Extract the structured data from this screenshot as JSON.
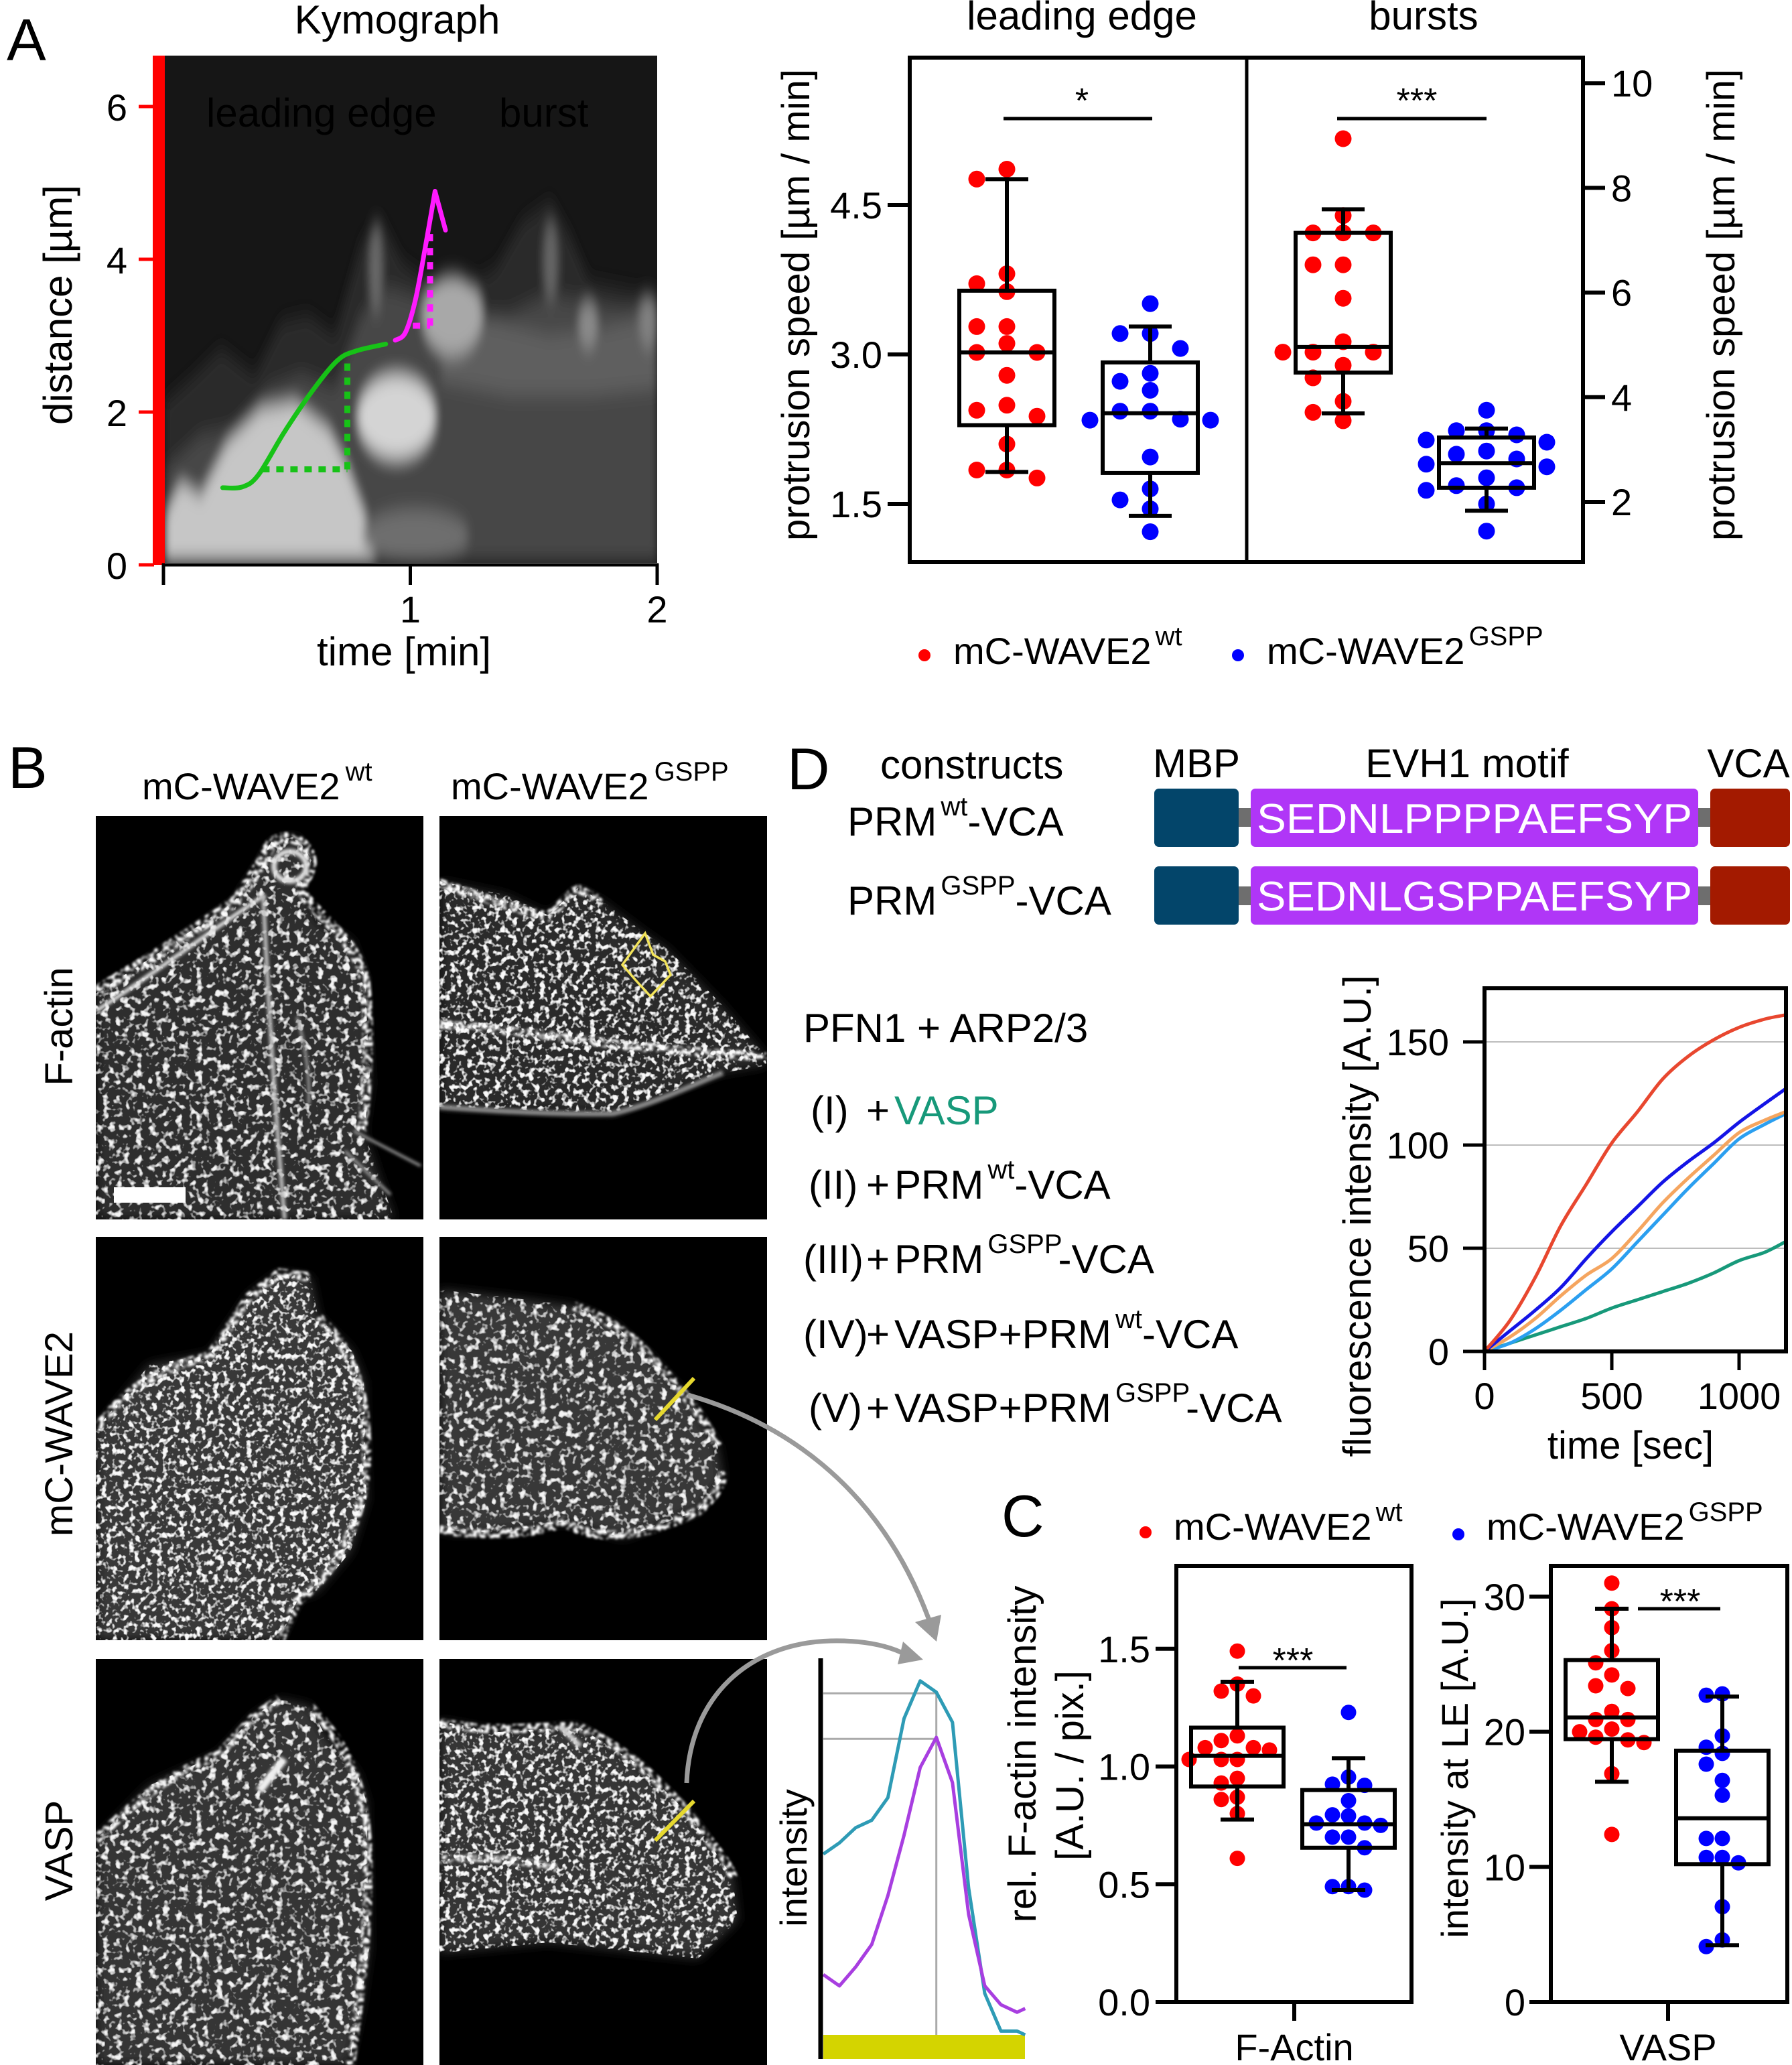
{
  "figure": {
    "panel_labels": {
      "A": "A",
      "B": "B",
      "C": "C",
      "D": "D"
    }
  },
  "panel_b": {
    "columns": [
      {
        "name": "mC-WAVE2",
        "sup": "wt"
      },
      {
        "name": "mC-WAVE2",
        "sup": "GSPP"
      }
    ],
    "rows": [
      {
        "label": "F-actin",
        "color": "#000000"
      },
      {
        "label": "mC-WAVE2",
        "color": "#b044dc"
      },
      {
        "label": "VASP",
        "color": "#2b9cc0"
      }
    ],
    "roi_color": "#f2e35a"
  },
  "panel_d": {
    "header": "constructs",
    "domains": [
      {
        "label": "MBP",
        "color": "#0b4a6b"
      },
      {
        "label": "EVH1 motif",
        "color": "#b43cf4"
      },
      {
        "label": "VCA",
        "color": "#a31c05"
      }
    ],
    "constructs": [
      {
        "name": "PRM",
        "sup": "wt",
        "suffix": "-VCA",
        "sequence": "SEDNLPPPPAEFSYP"
      },
      {
        "name": "PRM",
        "sup": "GSPP",
        "suffix": "-VCA",
        "sequence": "SEDNLGSPPAEFSYP"
      }
    ],
    "block_colors": {
      "mbp": "#03456a",
      "evh1": "#b036f7",
      "vca": "#a31a00",
      "linker": "#6e6e6e"
    }
  },
  "chart_data": [
    {
      "type": "scatter",
      "subtype": "box-swarm",
      "legend_position": "bottom",
      "legend": [
        {
          "name": "mC-WAVE2",
          "sup": "wt",
          "color": "#ff0000"
        },
        {
          "name": "mC-WAVE2",
          "sup": "GSPP",
          "color": "#0000ff"
        }
      ],
      "panels": [
        {
          "title": "leading edge",
          "ylabel": "protrusion speed [µm / min]",
          "y_axis": "left",
          "ylim": [
            0.92,
            5.98
          ],
          "yticks": [
            1.5,
            3.0,
            4.5
          ],
          "ytick_labels": [
            "1.5",
            "3.0",
            "4.5"
          ],
          "significance": "*",
          "groups": [
            {
              "legend_index": 0,
              "values": [
                4.86,
                4.76,
                3.81,
                3.71,
                3.63,
                3.28,
                3.28,
                3.11,
                3.02,
                3.02,
                2.79,
                2.49,
                2.44,
                2.38,
                2.1,
                1.84,
                1.84,
                1.76
              ],
              "box": {
                "whisker_low": 1.82,
                "q1": 2.29,
                "median": 3.02,
                "q3": 3.64,
                "whisker_high": 4.76
              }
            },
            {
              "legend_index": 1,
              "values": [
                3.51,
                3.21,
                3.21,
                3.06,
                2.81,
                2.73,
                2.64,
                2.43,
                2.43,
                2.35,
                2.34,
                2.34,
                1.97,
                1.65,
                1.54,
                1.45,
                1.22
              ],
              "box": {
                "whisker_low": 1.38,
                "q1": 1.81,
                "median": 2.41,
                "q3": 2.92,
                "whisker_high": 3.28
              }
            }
          ]
        },
        {
          "title": "bursts",
          "ylabel": "protrusion speed [µm / min]",
          "y_axis": "right",
          "ylim": [
            0.85,
            10.49
          ],
          "yticks": [
            2,
            4,
            6,
            8,
            10
          ],
          "ytick_labels": [
            "2",
            "4",
            "6",
            "8",
            "10"
          ],
          "significance": "***",
          "groups": [
            {
              "legend_index": 0,
              "values": [
                8.94,
                7.47,
                7.14,
                7.14,
                7.14,
                6.53,
                6.53,
                5.89,
                5.06,
                4.86,
                4.86,
                4.86,
                4.61,
                4.37,
                3.92,
                3.71,
                3.55
              ],
              "box": {
                "whisker_low": 3.69,
                "q1": 4.47,
                "median": 4.96,
                "q3": 7.14,
                "whisker_high": 7.59
              }
            },
            {
              "legend_index": 1,
              "values": [
                3.75,
                3.36,
                3.36,
                3.28,
                3.18,
                3.14,
                2.97,
                2.91,
                2.82,
                2.72,
                2.67,
                2.46,
                2.31,
                2.27,
                2.22,
                1.96,
                1.44
              ],
              "box": {
                "whisker_low": 1.83,
                "q1": 2.27,
                "median": 2.74,
                "q3": 3.23,
                "whisker_high": 3.4
              }
            }
          ]
        }
      ]
    },
    {
      "type": "heatmap",
      "title": "Kymograph",
      "xlabel": "time [min]",
      "ylabel": "distance [µm]",
      "xlim": [
        0,
        2
      ],
      "ylim": [
        0,
        6.67
      ],
      "xticks": [
        0,
        1,
        2
      ],
      "xtick_labels": [
        {
          "value": 1,
          "text": "1"
        },
        {
          "value": 2,
          "text": "2"
        }
      ],
      "yticks": [
        0,
        2,
        4,
        6
      ],
      "ytick_labels": [
        "0",
        "2",
        "4",
        "6"
      ],
      "axis_color": "#ff0000",
      "annotations": [
        {
          "label": "leading edge",
          "color": "#17c217",
          "trace": [
            [
              0.24,
              1.01
            ],
            [
              0.32,
              1.02
            ],
            [
              0.385,
              1.18
            ],
            [
              0.49,
              1.74
            ],
            [
              0.597,
              2.25
            ],
            [
              0.703,
              2.67
            ],
            [
              0.78,
              2.8
            ],
            [
              0.9,
              2.89
            ]
          ],
          "rise_guide": {
            "t": [
              0.4,
              0.745
            ],
            "d": [
              1.25,
              2.71
            ]
          },
          "arrow": false
        },
        {
          "label": "burst",
          "color": "#ff1aff",
          "trace": [
            [
              0.939,
              2.94
            ],
            [
              0.98,
              3.04
            ],
            [
              1.02,
              3.46
            ],
            [
              1.058,
              4.11
            ],
            [
              1.1,
              4.89
            ]
          ],
          "rise_guide": {
            "t": [
              1.01,
              1.08
            ],
            "d": [
              3.13,
              4.34
            ]
          },
          "arrow": true
        }
      ]
    },
    {
      "type": "line",
      "xlabel": "time [sec]",
      "ylabel": "fluorescence intensity [A.U.]",
      "xlim": [
        0,
        1184
      ],
      "ylim": [
        0,
        176
      ],
      "xticks": [
        0,
        500,
        1000
      ],
      "xtick_labels": [
        "0",
        "500",
        "1000"
      ],
      "yticks": [
        0,
        50,
        100,
        150
      ],
      "ytick_labels": [
        "0",
        "50",
        "100",
        "150"
      ],
      "grid": "horizontal",
      "legend_title": "PFN1 + ARP2/3",
      "legend_position": "left",
      "x": [
        0,
        100,
        200,
        300,
        400,
        500,
        600,
        700,
        800,
        900,
        1000,
        1100,
        1180
      ],
      "series": [
        {
          "numeral": "(I)",
          "plus": "+",
          "label": "VASP",
          "color": "#17997a",
          "values": [
            0,
            4,
            8,
            12,
            16,
            21,
            25,
            29,
            33,
            38,
            44,
            48,
            53
          ]
        },
        {
          "numeral": "(II)",
          "plus": "+",
          "label": "PRM",
          "sup": "wt",
          "suffix": "-VCA",
          "color": "#f5a55f",
          "values": [
            0,
            7,
            16,
            27,
            37,
            45,
            58,
            72,
            84,
            95,
            106,
            112,
            116
          ]
        },
        {
          "numeral": "(III)",
          "plus": "+",
          "label": "PRM",
          "sup": "GSPP",
          "suffix": "-VCA",
          "color": "#2b9ff0",
          "values": [
            0,
            4,
            11,
            20,
            30,
            40,
            53,
            66,
            79,
            91,
            103,
            110,
            115
          ]
        },
        {
          "numeral": "(IV)",
          "plus": "+",
          "label": "VASP+PRM",
          "sup": "wt",
          "suffix": "-VCA",
          "color": "#e8472f",
          "values": [
            0,
            15,
            36,
            61,
            81,
            101,
            116,
            132,
            143,
            151,
            157,
            161,
            163
          ]
        },
        {
          "numeral": "(V)",
          "plus": "+",
          "label": "VASP+PRM",
          "sup": "GSPP",
          "suffix": "-VCA",
          "color": "#1414e6",
          "values": [
            0,
            10,
            20,
            31,
            45,
            58,
            70,
            82,
            92,
            101,
            111,
            120,
            127
          ]
        }
      ]
    },
    {
      "type": "scatter",
      "subtype": "box-swarm",
      "legend_position": "top",
      "legend": [
        {
          "name": "mC-WAVE2",
          "sup": "wt",
          "color": "#ff0000"
        },
        {
          "name": "mC-WAVE2",
          "sup": "GSPP",
          "color": "#0000ff"
        }
      ],
      "panels": [
        {
          "category": "F-Actin",
          "category_color": "#000000",
          "ylabel_lines": [
            "rel. F-actin intensity",
            "[A.U. / pix.]"
          ],
          "ylim": [
            0,
            1.855
          ],
          "yticks": [
            0,
            0.5,
            1.0,
            1.5
          ],
          "ytick_labels": [
            "0.0",
            "0.5",
            "1.0",
            "1.5"
          ],
          "significance": "***",
          "groups": [
            {
              "legend_index": 0,
              "values": [
                1.49,
                1.35,
                1.32,
                1.3,
                1.13,
                1.11,
                1.08,
                1.08,
                1.07,
                1.03,
                1.03,
                1.03,
                0.95,
                0.93,
                0.87,
                0.86,
                0.8,
                0.61
              ],
              "box": {
                "whisker_low": 0.775,
                "q1": 0.915,
                "median": 1.045,
                "q3": 1.165,
                "whisker_high": 1.36
              }
            },
            {
              "legend_index": 1,
              "values": [
                1.23,
                0.955,
                0.925,
                0.92,
                0.855,
                0.795,
                0.79,
                0.76,
                0.76,
                0.75,
                0.7,
                0.7,
                0.655,
                0.49,
                0.49,
                0.475
              ],
              "box": {
                "whisker_low": 0.475,
                "q1": 0.655,
                "median": 0.755,
                "q3": 0.9,
                "whisker_high": 1.035
              }
            }
          ]
        },
        {
          "category": "VASP",
          "category_color": "#2b9cc0",
          "ylabel": "intensity at LE [A.U.]",
          "ylim": [
            0,
            32.3
          ],
          "yticks": [
            0,
            10,
            20,
            30
          ],
          "ytick_labels": [
            "0",
            "10",
            "20",
            "30"
          ],
          "significance": "***",
          "groups": [
            {
              "legend_index": 0,
              "values": [
                31.0,
                29.1,
                27.7,
                26.0,
                25.1,
                24.2,
                23.4,
                23.2,
                21.5,
                20.9,
                20.9,
                20.2,
                20.0,
                19.6,
                19.4,
                19.2,
                16.9,
                12.4
              ],
              "box": {
                "whisker_low": 16.3,
                "q1": 19.45,
                "median": 21.05,
                "q3": 25.3,
                "whisker_high": 29.1
              }
            },
            {
              "legend_index": 1,
              "values": [
                22.8,
                22.7,
                19.7,
                18.85,
                18.4,
                17.6,
                16.4,
                15.3,
                12.1,
                12.1,
                10.7,
                10.7,
                10.3,
                7.05,
                4.6,
                4.1
              ],
              "box": {
                "whisker_low": 4.2,
                "q1": 10.2,
                "median": 13.6,
                "q3": 18.6,
                "whisker_high": 22.6
              }
            }
          ]
        }
      ]
    },
    {
      "type": "line",
      "ylabel": "intensity",
      "x": [
        0,
        1,
        2,
        3,
        4,
        5,
        6,
        7,
        8,
        9,
        10,
        11,
        12,
        12.5
      ],
      "ylim": [
        0,
        1
      ],
      "series": [
        {
          "color": "#2e9bb5",
          "values": [
            0.48,
            0.51,
            0.55,
            0.57,
            0.63,
            0.84,
            0.94,
            0.91,
            0.83,
            0.39,
            0.11,
            0.01,
            0.01,
            0.0
          ]
        },
        {
          "color": "#a83ee0",
          "values": [
            0.16,
            0.13,
            0.18,
            0.24,
            0.37,
            0.53,
            0.71,
            0.79,
            0.67,
            0.32,
            0.13,
            0.08,
            0.06,
            0.07
          ]
        }
      ],
      "reference_x": 7,
      "reference_y": [
        0.907,
        0.786
      ],
      "line_region_color": "#d4d400"
    }
  ]
}
